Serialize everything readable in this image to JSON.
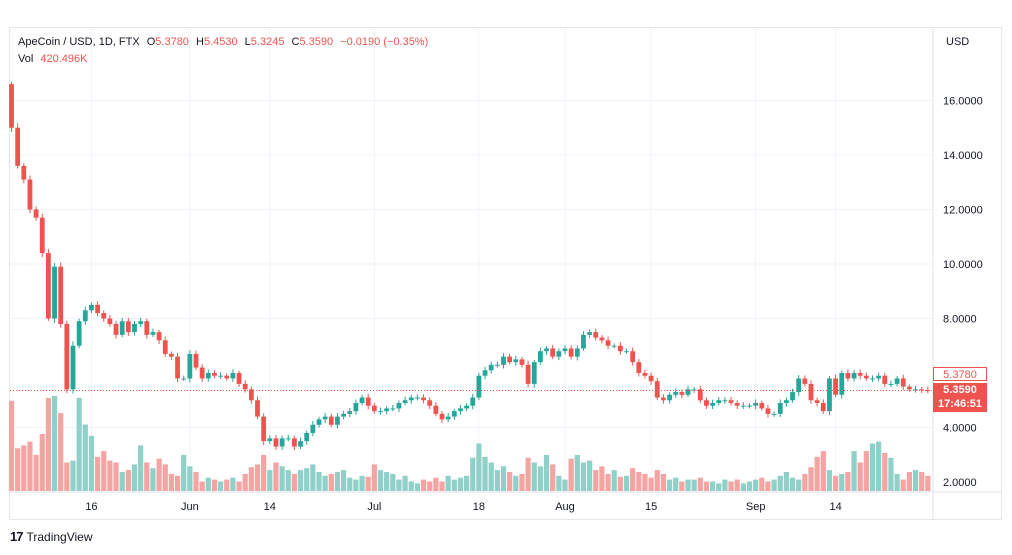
{
  "legend": {
    "symbol": "ApeCoin / USD, 1D, FTX",
    "o_label": "O",
    "o_value": "5.3780",
    "h_label": "H",
    "h_value": "5.4530",
    "l_label": "L",
    "l_value": "5.3245",
    "c_label": "C",
    "c_value": "5.3590",
    "change": "−0.0190 (−0.35%)",
    "vol_label": "Vol",
    "vol_value": "420.496K"
  },
  "price_tags": {
    "open": "5.3780",
    "last": "5.3590",
    "countdown": "17:46:51"
  },
  "footer": {
    "logo_glyph": "17",
    "brand": "TradingView"
  },
  "colors": {
    "up": "#26a69a",
    "down": "#ef5350",
    "vol_up": "#8fd0c8",
    "vol_down": "#f4a4a2",
    "grid": "#f0f3fa",
    "axis_text": "#131722"
  },
  "chart_data": {
    "type": "candlestick",
    "currency_label": "USD",
    "ylim": [
      1.5,
      17.5
    ],
    "y_ticks": [
      "16.0000",
      "14.0000",
      "12.0000",
      "10.0000",
      "8.0000",
      "4.0000",
      "2.0000"
    ],
    "x_ticks": [
      {
        "label": "16",
        "index": 13
      },
      {
        "label": "Jun",
        "index": 29
      },
      {
        "label": "14",
        "index": 42
      },
      {
        "label": "Jul",
        "index": 59
      },
      {
        "label": "18",
        "index": 76
      },
      {
        "label": "Aug",
        "index": 90
      },
      {
        "label": "15",
        "index": 104
      },
      {
        "label": "Sep",
        "index": 121
      },
      {
        "label": "14",
        "index": 134
      }
    ],
    "n_bars": 150,
    "close": [
      15.0,
      13.6,
      13.1,
      12.0,
      11.7,
      10.4,
      8.0,
      9.9,
      7.8,
      5.4,
      7.0,
      7.9,
      8.3,
      8.5,
      8.2,
      8.0,
      7.8,
      7.4,
      7.9,
      7.5,
      7.8,
      7.9,
      7.4,
      7.5,
      7.2,
      6.7,
      6.6,
      5.8,
      5.8,
      6.7,
      6.2,
      5.8,
      6.0,
      5.9,
      5.9,
      5.8,
      6.0,
      5.6,
      5.4,
      5.0,
      4.4,
      3.5,
      3.6,
      3.3,
      3.6,
      3.6,
      3.3,
      3.5,
      3.8,
      4.1,
      4.3,
      4.4,
      4.1,
      4.4,
      4.5,
      4.6,
      4.9,
      5.1,
      4.8,
      4.6,
      4.6,
      4.7,
      4.7,
      4.9,
      5.0,
      5.1,
      5.1,
      5.0,
      4.8,
      4.5,
      4.3,
      4.4,
      4.6,
      4.7,
      4.8,
      5.1,
      5.9,
      6.1,
      6.3,
      6.3,
      6.6,
      6.4,
      6.5,
      6.3,
      5.6,
      6.4,
      6.8,
      6.9,
      6.6,
      6.8,
      6.9,
      6.6,
      6.9,
      7.4,
      7.5,
      7.3,
      7.2,
      7.0,
      7.0,
      6.8,
      6.8,
      6.4,
      6.0,
      5.9,
      5.7,
      5.1,
      5.0,
      5.2,
      5.3,
      5.2,
      5.4,
      5.4,
      5.0,
      4.8,
      4.9,
      5.0,
      5.0,
      4.9,
      4.8,
      4.8,
      4.8,
      4.9,
      4.7,
      4.5,
      4.5,
      4.9,
      5.0,
      5.3,
      5.8,
      5.6,
      5.0,
      4.9,
      4.6,
      5.8,
      5.2,
      6.0,
      5.8,
      6.0,
      5.9,
      5.8,
      5.8,
      5.9,
      5.6,
      5.6,
      5.8,
      5.5,
      5.4,
      5.4,
      5.38,
      5.36
    ],
    "volume": [
      0.95,
      0.45,
      0.48,
      0.52,
      0.38,
      0.6,
      0.98,
      1.0,
      0.82,
      0.3,
      0.32,
      0.98,
      0.7,
      0.58,
      0.36,
      0.42,
      0.32,
      0.3,
      0.2,
      0.22,
      0.28,
      0.48,
      0.3,
      0.24,
      0.34,
      0.28,
      0.18,
      0.16,
      0.38,
      0.26,
      0.2,
      0.1,
      0.14,
      0.12,
      0.1,
      0.12,
      0.14,
      0.1,
      0.18,
      0.25,
      0.28,
      0.38,
      0.22,
      0.3,
      0.26,
      0.22,
      0.18,
      0.22,
      0.24,
      0.28,
      0.2,
      0.16,
      0.18,
      0.2,
      0.22,
      0.14,
      0.12,
      0.16,
      0.15,
      0.28,
      0.22,
      0.2,
      0.18,
      0.12,
      0.16,
      0.1,
      0.08,
      0.12,
      0.1,
      0.14,
      0.1,
      0.16,
      0.12,
      0.14,
      0.16,
      0.35,
      0.5,
      0.36,
      0.3,
      0.22,
      0.26,
      0.2,
      0.16,
      0.18,
      0.35,
      0.3,
      0.26,
      0.38,
      0.28,
      0.16,
      0.12,
      0.34,
      0.38,
      0.3,
      0.32,
      0.22,
      0.26,
      0.18,
      0.22,
      0.15,
      0.16,
      0.24,
      0.2,
      0.18,
      0.14,
      0.22,
      0.18,
      0.12,
      0.14,
      0.1,
      0.12,
      0.12,
      0.14,
      0.1,
      0.1,
      0.08,
      0.12,
      0.1,
      0.12,
      0.08,
      0.1,
      0.12,
      0.14,
      0.1,
      0.12,
      0.16,
      0.2,
      0.14,
      0.12,
      0.18,
      0.25,
      0.36,
      0.42,
      0.22,
      0.16,
      0.18,
      0.2,
      0.42,
      0.3,
      0.42,
      0.5,
      0.52,
      0.4,
      0.35,
      0.18,
      0.12,
      0.2,
      0.22,
      0.2,
      0.16
    ]
  }
}
